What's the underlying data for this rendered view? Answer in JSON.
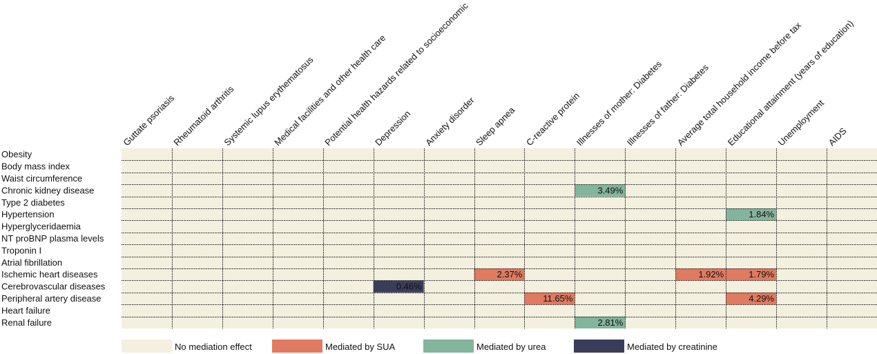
{
  "chart_data": {
    "type": "heatmap",
    "title": "",
    "columns": [
      "Guttate psoriasis",
      "Rheumatoid arthritis",
      "Systemic lupus erythematosus",
      "Medical facilities and other health care",
      "Potential health hazards related to socioeconomic",
      "Depression",
      "Anxiety disorder",
      "Sleep apnea",
      "C-reactive protein",
      "Illnesses of mother: Diabetes",
      "Illnesses of father: Diabetes",
      "Average total household income before tax",
      "Educational attainment (years of education)",
      "Unemployment",
      "AIDS"
    ],
    "rows": [
      "Obesity",
      "Body mass index",
      "Waist circumference",
      "Chronic kidney disease",
      "Type 2 diabetes",
      "Hypertension",
      "Hyperglyceridaemia",
      "NT proBNP plasma levels",
      "Troponin I",
      "Atrial fibrillation",
      "Ischemic heart diseases",
      "Cerebrovascular diseases",
      "Peripheral artery disease",
      "Heart failure",
      "Renal failure"
    ],
    "cells": [
      {
        "row": "Chronic kidney disease",
        "column": "Illnesses of mother: Diabetes",
        "value": 3.49,
        "label": "3.49%",
        "mediator": "urea"
      },
      {
        "row": "Hypertension",
        "column": "Educational attainment (years of education)",
        "value": 1.84,
        "label": "1.84%",
        "mediator": "urea"
      },
      {
        "row": "Ischemic heart diseases",
        "column": "Sleep apnea",
        "value": 2.37,
        "label": "2.37%",
        "mediator": "SUA"
      },
      {
        "row": "Ischemic heart diseases",
        "column": "Average total household income before tax",
        "value": 1.92,
        "label": "1.92%",
        "mediator": "SUA"
      },
      {
        "row": "Ischemic heart diseases",
        "column": "Educational attainment (years of education)",
        "value": 1.79,
        "label": "1.79%",
        "mediator": "SUA"
      },
      {
        "row": "Cerebrovascular diseases",
        "column": "Depression",
        "value": 0.46,
        "label": "0.46%",
        "mediator": "creatinine"
      },
      {
        "row": "Peripheral artery disease",
        "column": "C-reactive protein",
        "value": 11.65,
        "label": "11.65%",
        "mediator": "SUA"
      },
      {
        "row": "Peripheral artery disease",
        "column": "Educational attainment (years of education)",
        "value": 4.29,
        "label": "4.29%",
        "mediator": "SUA"
      },
      {
        "row": "Renal failure",
        "column": "Illnesses of mother: Diabetes",
        "value": 2.81,
        "label": "2.81%",
        "mediator": "urea"
      }
    ],
    "legend": [
      {
        "key": "none",
        "label": "No mediation effect",
        "color": "#f3f0df"
      },
      {
        "key": "SUA",
        "label": "Mediated by SUA",
        "color": "#e07a60"
      },
      {
        "key": "urea",
        "label": "Mediated by urea",
        "color": "#83b49c"
      },
      {
        "key": "creatinine",
        "label": "Mediated by creatinine",
        "color": "#3a3d5a"
      }
    ],
    "legend_position": "bottom",
    "grid": true
  }
}
